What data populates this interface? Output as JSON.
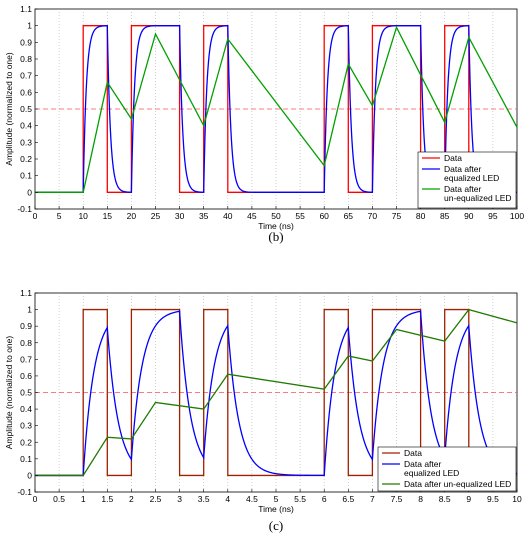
{
  "chart_data": [
    {
      "type": "line",
      "caption": "(b)",
      "xlabel": "Time (ns)",
      "ylabel": "Amplitude (normalized to one)",
      "xlim": [
        0,
        100
      ],
      "ylim": [
        -0.1,
        1.1
      ],
      "xticks": [
        0,
        5,
        10,
        15,
        20,
        25,
        30,
        35,
        40,
        45,
        50,
        55,
        60,
        65,
        70,
        75,
        80,
        85,
        90,
        95,
        100
      ],
      "yticks": [
        -0.1,
        0,
        0.1,
        0.2,
        0.3,
        0.4,
        0.5,
        0.6,
        0.7,
        0.8,
        0.9,
        1,
        1.1
      ],
      "grid": "vertical-dotted",
      "threshold": 0.5,
      "legend_position": "bottom-right",
      "bits": [
        0,
        0,
        1,
        0,
        1,
        1,
        0,
        1,
        0,
        0,
        0,
        0,
        1,
        0,
        1,
        1,
        0,
        1,
        0,
        0
      ],
      "bit_period": 5,
      "series": [
        {
          "name": "Data",
          "color": "#ff0000",
          "kind": "data"
        },
        {
          "name": "Data after equalized LED",
          "legend_lines": [
            "Data after",
            "equalized LED"
          ],
          "color": "#0000ff",
          "kind": "equalized"
        },
        {
          "name": "Data after un-equalized LED",
          "legend_lines": [
            "Data after",
            "un-equalized LED"
          ],
          "color": "#00a000",
          "kind": "unequalized"
        }
      ],
      "unequalized_points": [
        [
          0,
          0
        ],
        [
          10,
          0
        ],
        [
          15,
          0.66
        ],
        [
          20,
          0.44
        ],
        [
          25,
          0.95
        ],
        [
          35,
          0.4
        ],
        [
          40,
          0.92
        ],
        [
          60,
          0.16
        ],
        [
          65,
          0.77
        ],
        [
          70,
          0.52
        ],
        [
          75,
          0.99
        ],
        [
          85,
          0.42
        ],
        [
          90,
          0.93
        ],
        [
          100,
          0.39
        ]
      ]
    },
    {
      "type": "line",
      "caption": "(c)",
      "xlabel": "Time (ns)",
      "ylabel": "Amplitude (normalized to one)",
      "xlim": [
        0,
        10
      ],
      "ylim": [
        -0.1,
        1.1
      ],
      "xticks": [
        0,
        0.5,
        1,
        1.5,
        2,
        2.5,
        3,
        3.5,
        4,
        4.5,
        5,
        5.5,
        6,
        6.5,
        7,
        7.5,
        8,
        8.5,
        9,
        9.5,
        10
      ],
      "yticks": [
        -0.1,
        0,
        0.1,
        0.2,
        0.3,
        0.4,
        0.5,
        0.6,
        0.7,
        0.8,
        0.9,
        1,
        1.1
      ],
      "grid": "vertical-dotted",
      "threshold": 0.5,
      "legend_position": "bottom-right",
      "bits": [
        0,
        0,
        1,
        0,
        1,
        1,
        0,
        1,
        0,
        0,
        0,
        0,
        1,
        0,
        1,
        1,
        0,
        1,
        0,
        0
      ],
      "bit_period": 0.5,
      "series": [
        {
          "name": "Data",
          "color": "#a02000",
          "kind": "data"
        },
        {
          "name": "Data after equalized LED",
          "legend_lines": [
            "Data after",
            "equalized LED"
          ],
          "color": "#0000ff",
          "kind": "equalized_slow"
        },
        {
          "name": "Data after un-equalized LED",
          "legend_lines": [
            "Data after un-equalized LED"
          ],
          "color": "#207a00",
          "kind": "unequalized"
        }
      ],
      "unequalized_points": [
        [
          0,
          0
        ],
        [
          1,
          0
        ],
        [
          1.5,
          0.23
        ],
        [
          2,
          0.22
        ],
        [
          2.5,
          0.44
        ],
        [
          3.5,
          0.4
        ],
        [
          4,
          0.61
        ],
        [
          6,
          0.52
        ],
        [
          6.5,
          0.72
        ],
        [
          7,
          0.69
        ],
        [
          7.5,
          0.88
        ],
        [
          8.5,
          0.81
        ],
        [
          9,
          1.0
        ],
        [
          10,
          0.92
        ]
      ]
    }
  ]
}
